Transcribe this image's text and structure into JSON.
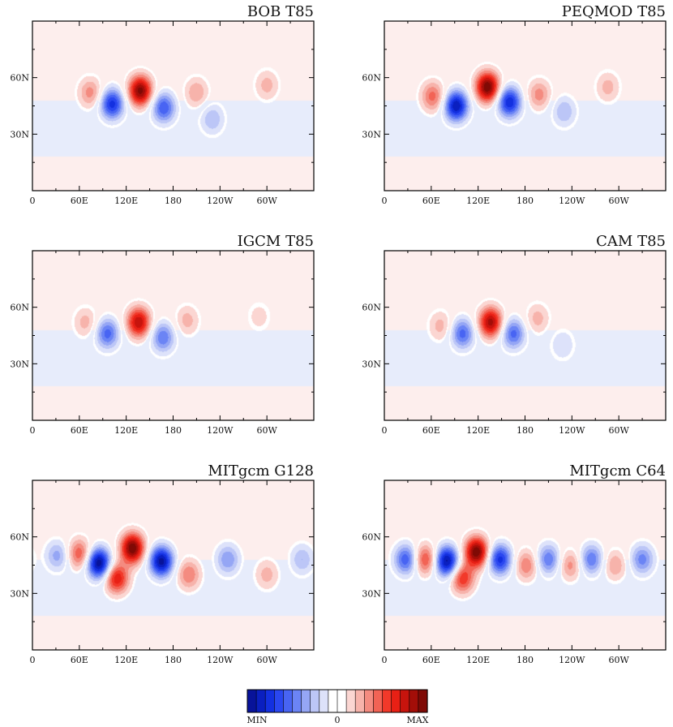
{
  "chart_data": [
    {
      "type": "heatmap",
      "title": "BOB T85",
      "x_tick_labels": [
        "0",
        "60E",
        "120E",
        "180",
        "120W",
        "60W"
      ],
      "y_tick_labels": [
        "30N",
        "60N"
      ],
      "xlim": [
        0,
        360
      ],
      "ylim": [
        0,
        90
      ],
      "background": "#fdeeed",
      "midlatitude_band_color": "#e7ecfb",
      "features": [
        {
          "lon": 102,
          "lat": 46,
          "sign": "negative",
          "strength": 0.75
        },
        {
          "lon": 138,
          "lat": 53,
          "sign": "positive",
          "strength": 0.95
        },
        {
          "lon": 168,
          "lat": 44,
          "sign": "negative",
          "strength": 0.6
        },
        {
          "lon": 74,
          "lat": 52,
          "sign": "positive",
          "strength": 0.35
        },
        {
          "lon": 210,
          "lat": 52,
          "sign": "positive",
          "strength": 0.3
        },
        {
          "lon": 230,
          "lat": 38,
          "sign": "negative",
          "strength": 0.3
        },
        {
          "lon": 300,
          "lat": 56,
          "sign": "positive",
          "strength": 0.25
        }
      ]
    },
    {
      "type": "heatmap",
      "title": "PEQMOD T85",
      "x_tick_labels": [
        "0",
        "60E",
        "120E",
        "180",
        "120W",
        "60W"
      ],
      "y_tick_labels": [
        "30N",
        "60N"
      ],
      "xlim": [
        0,
        360
      ],
      "ylim": [
        0,
        90
      ],
      "background": "#fdeeed",
      "midlatitude_band_color": "#e7ecfb",
      "features": [
        {
          "lon": 92,
          "lat": 45,
          "sign": "negative",
          "strength": 0.9
        },
        {
          "lon": 132,
          "lat": 55,
          "sign": "positive",
          "strength": 1.0
        },
        {
          "lon": 160,
          "lat": 47,
          "sign": "negative",
          "strength": 0.8
        },
        {
          "lon": 62,
          "lat": 50,
          "sign": "positive",
          "strength": 0.45
        },
        {
          "lon": 198,
          "lat": 51,
          "sign": "positive",
          "strength": 0.35
        },
        {
          "lon": 230,
          "lat": 42,
          "sign": "negative",
          "strength": 0.3
        },
        {
          "lon": 286,
          "lat": 55,
          "sign": "positive",
          "strength": 0.25
        }
      ]
    },
    {
      "type": "heatmap",
      "title": "IGCM T85",
      "x_tick_labels": [
        "0",
        "60E",
        "120E",
        "180",
        "120W",
        "60W"
      ],
      "y_tick_labels": [
        "30N",
        "60N"
      ],
      "xlim": [
        0,
        360
      ],
      "ylim": [
        0,
        90
      ],
      "background": "#fdeeed",
      "midlatitude_band_color": "#e7ecfb",
      "features": [
        {
          "lon": 96,
          "lat": 46,
          "sign": "negative",
          "strength": 0.55
        },
        {
          "lon": 136,
          "lat": 52,
          "sign": "positive",
          "strength": 0.8
        },
        {
          "lon": 167,
          "lat": 44,
          "sign": "negative",
          "strength": 0.5
        },
        {
          "lon": 68,
          "lat": 52,
          "sign": "positive",
          "strength": 0.25
        },
        {
          "lon": 198,
          "lat": 53,
          "sign": "positive",
          "strength": 0.25
        },
        {
          "lon": 290,
          "lat": 55,
          "sign": "positive",
          "strength": 0.15
        }
      ]
    },
    {
      "type": "heatmap",
      "title": "CAM T85",
      "x_tick_labels": [
        "0",
        "60E",
        "120E",
        "180",
        "120W",
        "60W"
      ],
      "y_tick_labels": [
        "30N",
        "60N"
      ],
      "xlim": [
        0,
        360
      ],
      "ylim": [
        0,
        90
      ],
      "background": "#fdeeed",
      "midlatitude_band_color": "#e7ecfb",
      "features": [
        {
          "lon": 100,
          "lat": 46,
          "sign": "negative",
          "strength": 0.55
        },
        {
          "lon": 136,
          "lat": 52,
          "sign": "positive",
          "strength": 0.85
        },
        {
          "lon": 165,
          "lat": 46,
          "sign": "negative",
          "strength": 0.55
        },
        {
          "lon": 72,
          "lat": 50,
          "sign": "positive",
          "strength": 0.25
        },
        {
          "lon": 196,
          "lat": 54,
          "sign": "positive",
          "strength": 0.25
        },
        {
          "lon": 228,
          "lat": 40,
          "sign": "negative",
          "strength": 0.2
        }
      ]
    },
    {
      "type": "heatmap",
      "title": "MITgcm G128",
      "x_tick_labels": [
        "0",
        "60E",
        "120E",
        "180",
        "120W",
        "60W"
      ],
      "y_tick_labels": [
        "30N",
        "60N"
      ],
      "xlim": [
        0,
        360
      ],
      "ylim": [
        0,
        90
      ],
      "background": "#fdeeed",
      "midlatitude_band_color": "#e7ecfb",
      "features": [
        {
          "lon": 85,
          "lat": 46,
          "sign": "negative",
          "strength": 1.0
        },
        {
          "lon": 128,
          "lat": 54,
          "sign": "positive",
          "strength": 1.0
        },
        {
          "lon": 165,
          "lat": 47,
          "sign": "negative",
          "strength": 0.95
        },
        {
          "lon": 108,
          "lat": 38,
          "sign": "positive",
          "strength": 0.7
        },
        {
          "lon": 60,
          "lat": 51,
          "sign": "positive",
          "strength": 0.5
        },
        {
          "lon": 32,
          "lat": 50,
          "sign": "negative",
          "strength": 0.35
        },
        {
          "lon": 200,
          "lat": 40,
          "sign": "positive",
          "strength": 0.4
        },
        {
          "lon": 250,
          "lat": 48,
          "sign": "negative",
          "strength": 0.4
        },
        {
          "lon": 300,
          "lat": 40,
          "sign": "positive",
          "strength": 0.25
        },
        {
          "lon": 345,
          "lat": 48,
          "sign": "negative",
          "strength": 0.3
        }
      ]
    },
    {
      "type": "heatmap",
      "title": "MITgcm C64",
      "x_tick_labels": [
        "0",
        "60E",
        "120E",
        "180",
        "120W",
        "60W"
      ],
      "y_tick_labels": [
        "30N",
        "60N"
      ],
      "xlim": [
        0,
        360
      ],
      "ylim": [
        0,
        90
      ],
      "background": "#fdeeed",
      "midlatitude_band_color": "#e7ecfb",
      "features": [
        {
          "lon": 28,
          "lat": 48,
          "sign": "negative",
          "strength": 0.6
        },
        {
          "lon": 52,
          "lat": 48,
          "sign": "positive",
          "strength": 0.55
        },
        {
          "lon": 80,
          "lat": 47,
          "sign": "negative",
          "strength": 0.95
        },
        {
          "lon": 118,
          "lat": 52,
          "sign": "positive",
          "strength": 1.0
        },
        {
          "lon": 148,
          "lat": 48,
          "sign": "negative",
          "strength": 0.75
        },
        {
          "lon": 100,
          "lat": 38,
          "sign": "positive",
          "strength": 0.6
        },
        {
          "lon": 182,
          "lat": 45,
          "sign": "positive",
          "strength": 0.4
        },
        {
          "lon": 210,
          "lat": 48,
          "sign": "negative",
          "strength": 0.5
        },
        {
          "lon": 238,
          "lat": 45,
          "sign": "positive",
          "strength": 0.35
        },
        {
          "lon": 265,
          "lat": 48,
          "sign": "negative",
          "strength": 0.5
        },
        {
          "lon": 295,
          "lat": 45,
          "sign": "positive",
          "strength": 0.3
        },
        {
          "lon": 330,
          "lat": 48,
          "sign": "negative",
          "strength": 0.45
        }
      ]
    }
  ],
  "colorbar": {
    "labels": {
      "min": "MIN",
      "zero": "0",
      "max": "MAX"
    },
    "colors": [
      "#08139a",
      "#0a1fc0",
      "#1330e0",
      "#2a47f0",
      "#4864f3",
      "#6b84f5",
      "#95a6f5",
      "#bcc6f7",
      "#dde2fa",
      "#ffffff",
      "#ffffff",
      "#fbd6d2",
      "#f7b3ab",
      "#f48b80",
      "#f26355",
      "#f2392a",
      "#e82015",
      "#c7140d",
      "#a30e08",
      "#7f0a05"
    ]
  }
}
